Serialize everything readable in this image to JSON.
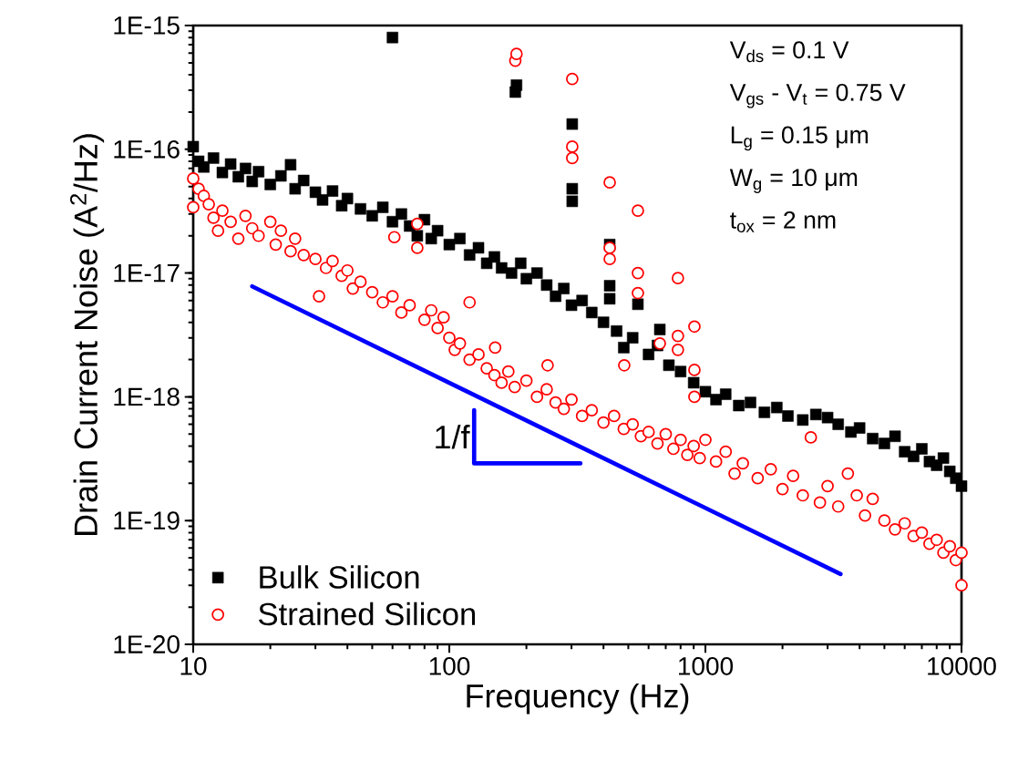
{
  "chart_data": {
    "type": "scatter",
    "xlabel": "Frequency (Hz)",
    "ylabel": "Drain Current Noise (A$^{2}$/Hz)",
    "log": "xy",
    "xlim": [
      10,
      10000
    ],
    "ylim": [
      1e-20,
      1e-15
    ],
    "xticks": [
      10,
      100,
      1000,
      10000
    ],
    "yticks": [
      {
        "value": 1e-20,
        "label": "1E-20"
      },
      {
        "value": 1e-19,
        "label": "1E-19"
      },
      {
        "value": 1e-18,
        "label": "1E-18"
      },
      {
        "value": 1e-17,
        "label": "1E-17"
      },
      {
        "value": 1e-16,
        "label": "1E-16"
      },
      {
        "value": 1e-15,
        "label": "1E-15"
      }
    ],
    "legend": "bottom left",
    "annotations": [
      "V$_{ds}$ = 0.1 V",
      "V$_{gs}$ - V$_{t}$ = 0.75 V",
      "L$_{g}$ = 0.15 μm",
      "W$_{g}$ = 10 μm",
      "t$_{ox}$ = 2 nm",
      "1/f"
    ],
    "series": [
      {
        "name": "Bulk Silicon",
        "color": "#000000",
        "marker": "square",
        "x": [
          10,
          10.5,
          11,
          12,
          13,
          14,
          15,
          16,
          17,
          18,
          20,
          22,
          24,
          25,
          27,
          30,
          32,
          35,
          38,
          40,
          45,
          50,
          55,
          60,
          60,
          65,
          70,
          75,
          80,
          85,
          90,
          100,
          110,
          120,
          130,
          140,
          150,
          160,
          175,
          181,
          183,
          190,
          200,
          220,
          240,
          260,
          280,
          300,
          302,
          302,
          302,
          330,
          360,
          400,
          423,
          423,
          423,
          450,
          480,
          520,
          545,
          600,
          650,
          664,
          720,
          800,
          900,
          1000,
          1100,
          1200,
          1350,
          1500,
          1700,
          1900,
          2100,
          2400,
          2700,
          3000,
          3300,
          3700,
          4000,
          4500,
          5000,
          5500,
          6000,
          6500,
          7000,
          7500,
          8000,
          8500,
          9000,
          9500,
          10000
        ],
        "values": [
          1.05e-16,
          8e-17,
          7.2e-17,
          8.5e-17,
          6.5e-17,
          7.6e-17,
          6e-17,
          7e-17,
          5.5e-17,
          6.6e-17,
          5.2e-17,
          6.1e-17,
          7.5e-17,
          4.8e-17,
          5.6e-17,
          4.5e-17,
          3.9e-17,
          4.6e-17,
          3.5e-17,
          4e-17,
          3.3e-17,
          2.9e-17,
          3.4e-17,
          2.6e-17,
          8e-16,
          3e-17,
          2.4e-17,
          2e-17,
          2.7e-17,
          1.9e-17,
          2.2e-17,
          1.7e-17,
          1.9e-17,
          1.4e-17,
          1.6e-17,
          1.2e-17,
          1.35e-17,
          1.1e-17,
          1e-17,
          2.9e-16,
          3.3e-16,
          1.2e-17,
          9e-18,
          1e-17,
          8e-18,
          6.5e-18,
          7.5e-18,
          5.5e-18,
          1.6e-16,
          4.8e-17,
          3.8e-17,
          6e-18,
          4.8e-18,
          4e-18,
          1.7e-17,
          7.9e-18,
          6.2e-18,
          3.4e-18,
          2.5e-18,
          3e-18,
          5.6e-18,
          2.2e-18,
          2.6e-18,
          3.5e-18,
          1.8e-18,
          1.6e-18,
          1.3e-18,
          1.1e-18,
          9.5e-19,
          1.05e-18,
          8.5e-19,
          9e-19,
          7.5e-19,
          8.2e-19,
          7e-19,
          6.5e-19,
          7.2e-19,
          6.8e-19,
          6e-19,
          5.2e-19,
          5.6e-19,
          4.6e-19,
          4.2e-19,
          4.8e-19,
          3.6e-19,
          3.3e-19,
          3.8e-19,
          3e-19,
          2.8e-19,
          3.2e-19,
          2.5e-19,
          2.2e-19,
          1.9e-19
        ]
      },
      {
        "name": "Strained Silicon",
        "color": "#ff0000",
        "marker": "circle",
        "x": [
          10,
          10,
          10.5,
          11,
          11.5,
          12,
          12.5,
          13,
          14,
          15,
          16,
          17,
          18,
          20,
          21,
          22,
          24,
          25,
          27,
          30,
          31,
          33,
          35,
          38,
          40,
          42,
          45,
          50,
          55,
          61,
          60,
          65,
          70,
          75,
          75,
          80,
          85,
          90,
          95,
          100,
          105,
          110,
          120,
          120,
          130,
          140,
          151,
          150,
          160,
          170,
          180,
          181,
          183,
          200,
          220,
          240,
          242,
          260,
          280,
          300,
          302,
          302,
          302,
          330,
          360,
          400,
          423,
          423,
          423,
          440,
          480,
          482,
          520,
          545,
          545,
          545,
          560,
          600,
          650,
          664,
          700,
          750,
          781,
          781,
          781,
          800,
          850,
          900,
          906,
          906,
          906,
          950,
          1000,
          1100,
          1200,
          1300,
          1400,
          1600,
          1800,
          2000,
          2200,
          2400,
          2580,
          2800,
          3000,
          3300,
          3600,
          3900,
          4200,
          4500,
          5000,
          5500,
          6000,
          6500,
          7000,
          7500,
          8000,
          8500,
          9000,
          9500,
          10000,
          10000
        ],
        "values": [
          5.8e-17,
          3.4e-17,
          4.8e-17,
          4.2e-17,
          3.6e-17,
          2.8e-17,
          2.2e-17,
          3.2e-17,
          2.6e-17,
          1.9e-17,
          2.9e-17,
          2.3e-17,
          2e-17,
          2.6e-17,
          1.7e-17,
          2.2e-17,
          1.5e-17,
          1.9e-17,
          1.4e-17,
          1.3e-17,
          6.5e-18,
          1.1e-17,
          1.25e-17,
          9.5e-18,
          1.05e-17,
          7.5e-18,
          8.5e-18,
          7e-18,
          5.8e-18,
          1.95e-17,
          6.5e-18,
          4.8e-18,
          5.5e-18,
          2.5e-17,
          1.6e-17,
          4.2e-18,
          5e-18,
          3.6e-18,
          4.4e-18,
          3e-18,
          2.4e-18,
          2.7e-18,
          2e-18,
          5.8e-18,
          2.2e-18,
          1.7e-18,
          2.5e-18,
          1.5e-18,
          1.3e-18,
          1.6e-18,
          1.2e-18,
          5.2e-16,
          5.9e-16,
          1.35e-18,
          1e-18,
          1.15e-18,
          1.8e-18,
          9e-19,
          8e-19,
          9.5e-19,
          3.7e-16,
          1.05e-16,
          8.5e-17,
          7e-19,
          7.8e-19,
          6.2e-19,
          5.4e-17,
          1.6e-17,
          1.3e-17,
          7e-19,
          5.5e-19,
          1.8e-18,
          6e-19,
          3.2e-17,
          1e-17,
          6.9e-18,
          4.8e-19,
          5.2e-19,
          4.2e-19,
          2.7e-18,
          5e-19,
          3.8e-19,
          9.1e-18,
          3.1e-18,
          2.4e-18,
          4.5e-19,
          3.4e-19,
          4e-19,
          3.7e-18,
          1.65e-18,
          1e-18,
          3.2e-19,
          4.5e-19,
          3e-19,
          3.6e-19,
          2.4e-19,
          2.9e-19,
          2.2e-19,
          2.6e-19,
          1.8e-19,
          2.3e-19,
          1.6e-19,
          4.7e-19,
          1.4e-19,
          1.9e-19,
          1.3e-19,
          2.4e-19,
          1.6e-19,
          1.1e-19,
          1.5e-19,
          1e-19,
          8.5e-20,
          9.5e-20,
          7.5e-20,
          8e-20,
          6.5e-20,
          7e-20,
          5.5e-20,
          6.2e-20,
          4.8e-20,
          5.5e-20,
          3e-20
        ]
      },
      {
        "type": "line",
        "color": "#0000ff",
        "marker": "none",
        "x": [
          17,
          3370
        ],
        "values": [
          7.8e-18,
          3.7e-20
        ]
      },
      {
        "type": "line",
        "color": "#0000ff",
        "marker": "none",
        "x": [
          125,
          125,
          325
        ],
        "values": [
          7.8e-19,
          2.9e-19,
          2.9e-19
        ]
      }
    ]
  }
}
